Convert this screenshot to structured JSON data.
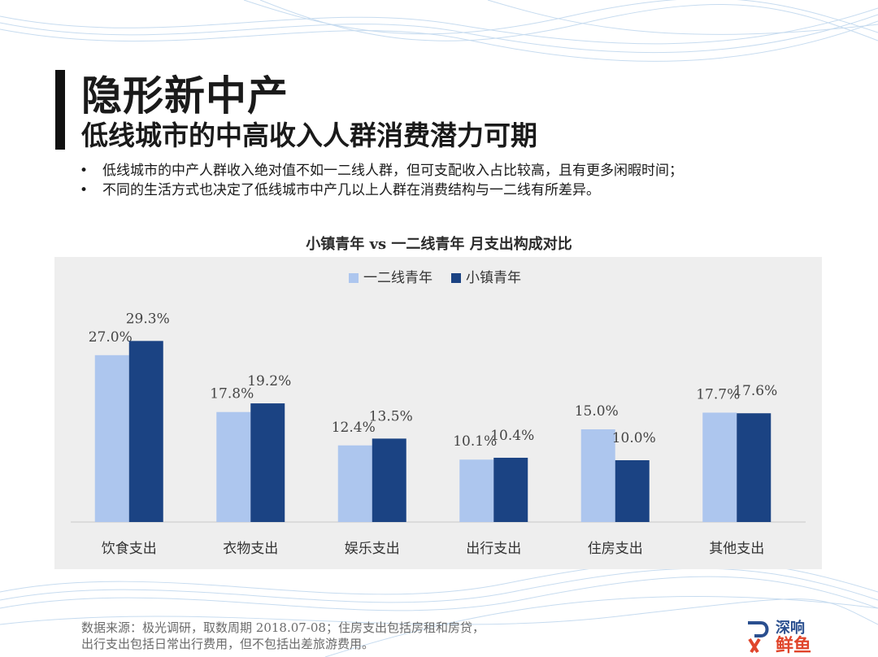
{
  "title": {
    "main": "隐形新中产",
    "sub": "低线城市的中高收入人群消费潜力可期"
  },
  "bullets": [
    "低线城市的中产人群收入绝对值不如一二线人群，但可支配收入占比较高，且有更多闲暇时间；",
    "不同的生活方式也决定了低线城市中产几以上人群在消费结构与一二线有所差异。"
  ],
  "footnote": [
    "数据来源：极光调研，取数周期 2018.07-08；住房支出包括房租和房贷，",
    "出行支出包括日常出行费用，但不包括出差旅游费用。"
  ],
  "logo": {
    "text_top": "深响",
    "text_bottom": "鲜鱼"
  },
  "colors": {
    "light_bar": "#adc6ee",
    "dark_bar": "#1b4383",
    "panel_bg": "#eeeeee"
  },
  "chart_data": {
    "type": "bar",
    "title": "小镇青年 vs 一二线青年 月支出构成对比",
    "categories": [
      "饮食支出",
      "衣物支出",
      "娱乐支出",
      "出行支出",
      "住房支出",
      "其他支出"
    ],
    "series": [
      {
        "name": "一二线青年",
        "values": [
          27.0,
          17.8,
          12.4,
          10.1,
          15.0,
          17.7
        ],
        "labels": [
          "27.0%",
          "17.8%",
          "12.4%",
          "10.1%",
          "15.0%",
          "17.7%"
        ]
      },
      {
        "name": "小镇青年",
        "values": [
          29.3,
          19.2,
          13.5,
          10.4,
          10.0,
          17.6
        ],
        "labels": [
          "29.3%",
          "19.2%",
          "13.5%",
          "10.4%",
          "10.0%",
          "17.6%"
        ]
      }
    ],
    "ylim": [
      0,
      35
    ],
    "legend": "top-center",
    "grid": false
  }
}
